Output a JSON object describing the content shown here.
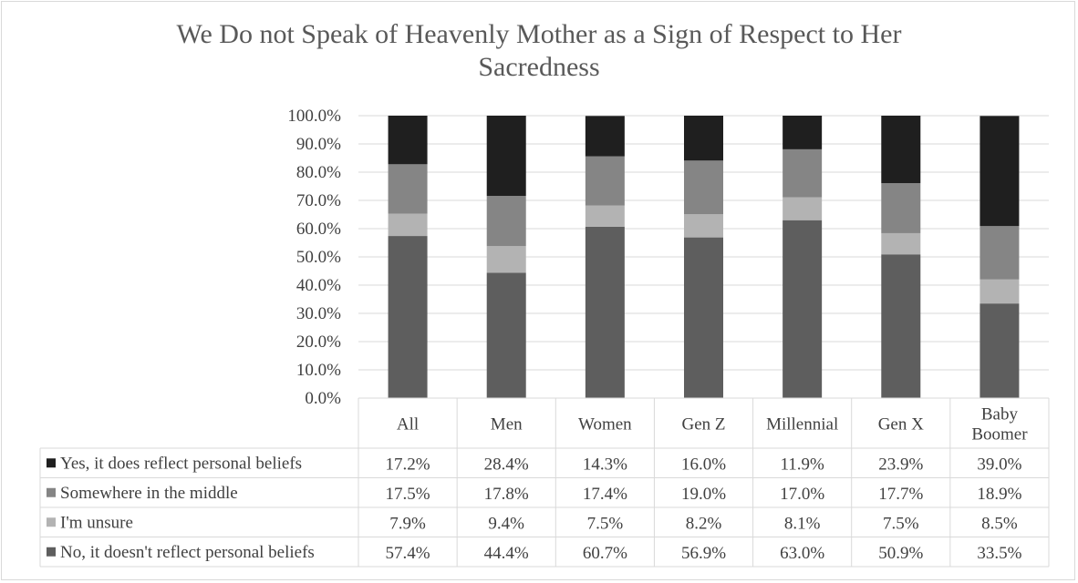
{
  "chart_data": {
    "type": "bar",
    "stacked": true,
    "percent_stacked": true,
    "title_lines": [
      "We Do not Speak of Heavenly Mother as a Sign of Respect to Her",
      "Sacredness"
    ],
    "xlabel": "",
    "ylabel": "",
    "ylim": [
      0,
      100
    ],
    "y_ticks": [
      "0.0%",
      "10.0%",
      "20.0%",
      "30.0%",
      "40.0%",
      "50.0%",
      "60.0%",
      "70.0%",
      "80.0%",
      "90.0%",
      "100.0%"
    ],
    "categories": [
      {
        "lines": [
          "All"
        ]
      },
      {
        "lines": [
          "Men"
        ]
      },
      {
        "lines": [
          "Women"
        ]
      },
      {
        "lines": [
          "Gen Z"
        ]
      },
      {
        "lines": [
          "Millennial"
        ]
      },
      {
        "lines": [
          "Gen X"
        ]
      },
      {
        "lines": [
          "Baby",
          "Boomer"
        ]
      }
    ],
    "series": [
      {
        "name": "Yes, it does reflect personal beliefs",
        "color": "#1f1f1f",
        "values": [
          17.2,
          28.4,
          14.3,
          16.0,
          11.9,
          23.9,
          39.0
        ],
        "labels": [
          "17.2%",
          "28.4%",
          "14.3%",
          "16.0%",
          "11.9%",
          "23.9%",
          "39.0%"
        ]
      },
      {
        "name": "Somewhere in the middle",
        "color": "#858585",
        "values": [
          17.5,
          17.8,
          17.4,
          19.0,
          17.0,
          17.7,
          18.9
        ],
        "labels": [
          "17.5%",
          "17.8%",
          "17.4%",
          "19.0%",
          "17.0%",
          "17.7%",
          "18.9%"
        ]
      },
      {
        "name": "I'm unsure",
        "color": "#b3b3b3",
        "values": [
          7.9,
          9.4,
          7.5,
          8.2,
          8.1,
          7.5,
          8.5
        ],
        "labels": [
          "7.9%",
          "9.4%",
          "7.5%",
          "8.2%",
          "8.1%",
          "7.5%",
          "8.5%"
        ]
      },
      {
        "name": "No, it doesn't reflect personal beliefs",
        "color": "#5e5e5e",
        "values": [
          57.4,
          44.4,
          60.7,
          56.9,
          63.0,
          50.9,
          33.5
        ],
        "labels": [
          "57.4%",
          "44.4%",
          "60.7%",
          "56.9%",
          "63.0%",
          "50.9%",
          "33.5%"
        ]
      }
    ],
    "stack_order_bottom_to_top": [
      3,
      2,
      1,
      0
    ],
    "grid": true,
    "legend": "data-table-below",
    "data_table": true
  }
}
